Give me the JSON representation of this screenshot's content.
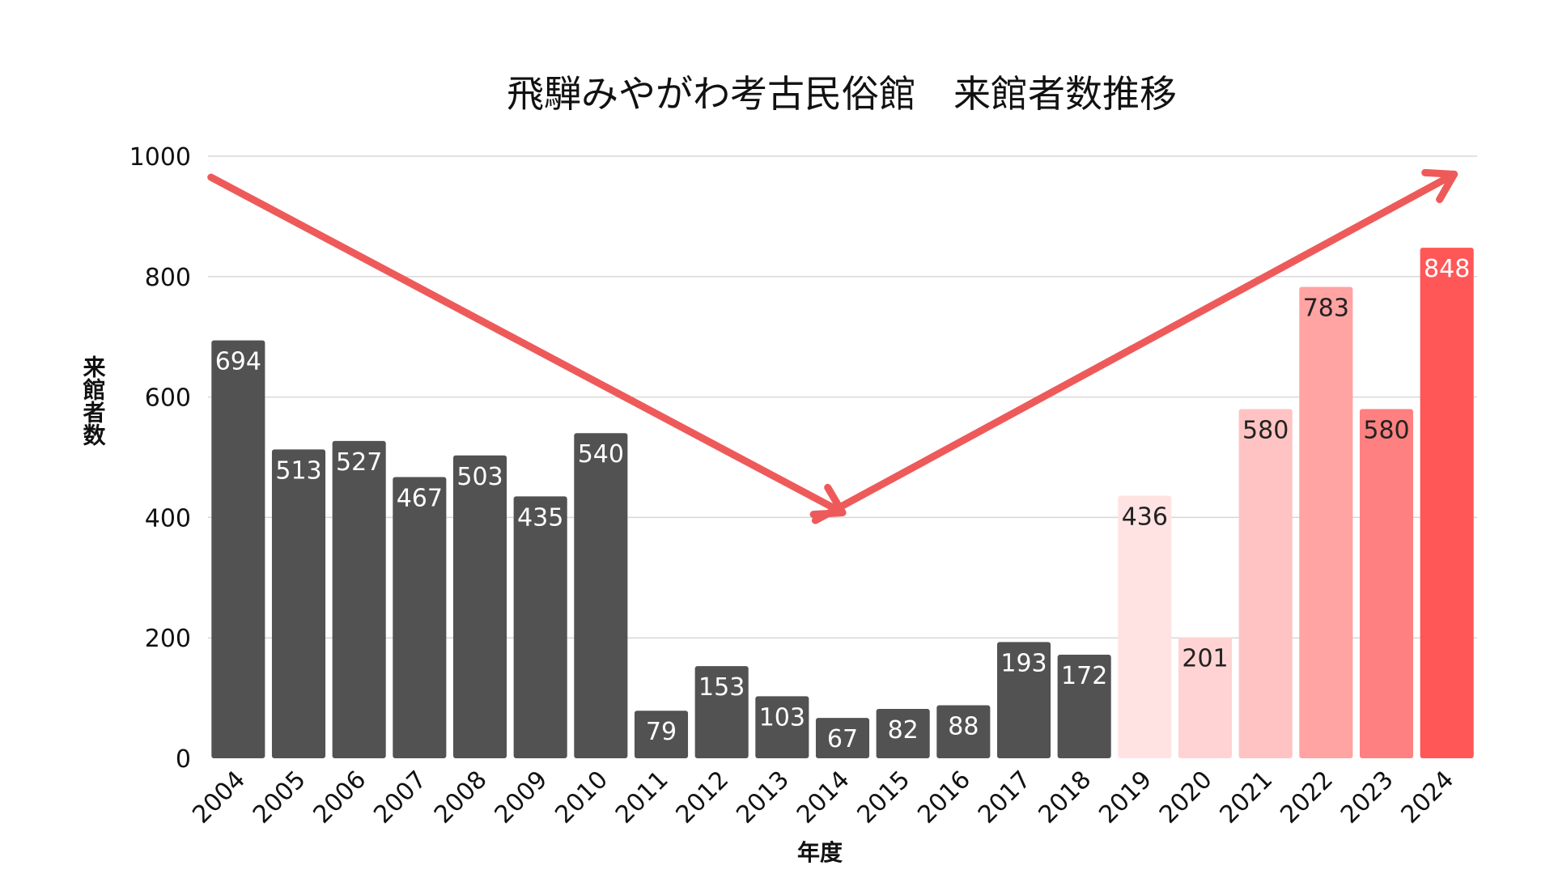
{
  "chart_data": {
    "type": "bar",
    "title": "飛騨みやがわ考古民俗館　来館者数推移",
    "xlabel": "年度",
    "ylabel": "来館者数",
    "ylim": [
      0,
      1000
    ],
    "yticks": [
      "0",
      "200",
      "400",
      "600",
      "800",
      "1000"
    ],
    "grid": true,
    "categories": [
      "2004",
      "2005",
      "2006",
      "2007",
      "2008",
      "2009",
      "2010",
      "2011",
      "2012",
      "2013",
      "2014",
      "2015",
      "2016",
      "2017",
      "2018",
      "2019",
      "2020",
      "2021",
      "2022",
      "2023",
      "2024"
    ],
    "values": [
      694,
      513,
      527,
      467,
      503,
      435,
      540,
      79,
      153,
      103,
      67,
      82,
      88,
      193,
      172,
      436,
      201,
      580,
      783,
      580,
      848
    ],
    "bar_colors": [
      "#525252",
      "#525252",
      "#525252",
      "#525252",
      "#525252",
      "#525252",
      "#525252",
      "#525252",
      "#525252",
      "#525252",
      "#525252",
      "#525252",
      "#525252",
      "#525252",
      "#525252",
      "#ffe3e3",
      "#ffd3d3",
      "#ffc3c3",
      "#ffa3a3",
      "#ff8080",
      "#ff5757"
    ],
    "label_colors": [
      "#ffffff",
      "#ffffff",
      "#ffffff",
      "#ffffff",
      "#ffffff",
      "#ffffff",
      "#ffffff",
      "#ffffff",
      "#ffffff",
      "#ffffff",
      "#ffffff",
      "#ffffff",
      "#ffffff",
      "#ffffff",
      "#ffffff",
      "#222222",
      "#222222",
      "#222222",
      "#222222",
      "#222222",
      "#ffffff"
    ],
    "trend_arrows": [
      {
        "from": {
          "x": "2004",
          "y": 965
        },
        "to": {
          "x": "2014",
          "y": 408
        }
      },
      {
        "from": {
          "x": "2014",
          "y": 395
        },
        "to": {
          "x": "2024",
          "y": 970
        }
      }
    ],
    "arrow_color": "#ee5a5a"
  }
}
